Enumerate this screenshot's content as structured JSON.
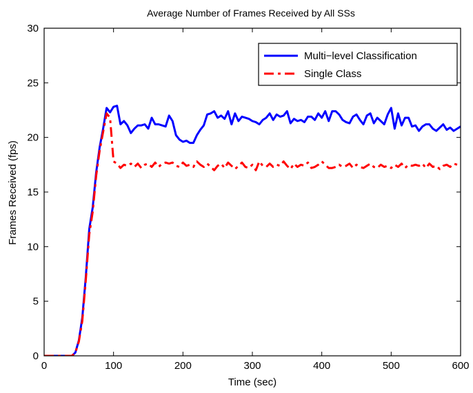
{
  "chart_data": {
    "type": "line",
    "title": "Average Number of Frames Received by All SSs",
    "xlabel": "Time (sec)",
    "ylabel": "Frames Received (fps)",
    "xlim": [
      0,
      600
    ],
    "ylim": [
      0,
      30
    ],
    "xticks": [
      "0",
      "100",
      "200",
      "300",
      "400",
      "500",
      "600"
    ],
    "yticks": [
      "0",
      "5",
      "10",
      "15",
      "20",
      "25",
      "30"
    ],
    "grid": false,
    "legend_position": "top-right",
    "series": [
      {
        "name": "Multi−level Classification",
        "color": "#0000ff",
        "style": "solid",
        "x": [
          0,
          5,
          10,
          15,
          20,
          25,
          30,
          35,
          40,
          45,
          50,
          55,
          60,
          65,
          70,
          75,
          80,
          85,
          90,
          95,
          100,
          105,
          110,
          115,
          120,
          125,
          130,
          135,
          140,
          145,
          150,
          155,
          160,
          165,
          170,
          175,
          180,
          185,
          190,
          195,
          200,
          205,
          210,
          215,
          220,
          225,
          230,
          235,
          240,
          245,
          250,
          255,
          260,
          265,
          270,
          275,
          280,
          285,
          290,
          295,
          300,
          305,
          310,
          315,
          320,
          325,
          330,
          335,
          340,
          345,
          350,
          355,
          360,
          365,
          370,
          375,
          380,
          385,
          390,
          395,
          400,
          405,
          410,
          415,
          420,
          425,
          430,
          435,
          440,
          445,
          450,
          455,
          460,
          465,
          470,
          475,
          480,
          485,
          490,
          495,
          500,
          505,
          510,
          515,
          520,
          525,
          530,
          535,
          540,
          545,
          550,
          555,
          560,
          565,
          570,
          575,
          580,
          585,
          590,
          595,
          600
        ],
        "y": [
          0,
          0,
          0,
          0,
          0,
          0,
          0,
          0,
          0,
          0.3,
          1.4,
          3.5,
          7.2,
          11.6,
          13.6,
          16.8,
          19.1,
          20.8,
          22.7,
          22.3,
          22.8,
          22.9,
          21.2,
          21.5,
          21.1,
          20.4,
          20.8,
          21.1,
          21.1,
          21.2,
          20.8,
          21.8,
          21.2,
          21.2,
          21.1,
          21.0,
          22.0,
          21.5,
          20.2,
          19.8,
          19.6,
          19.7,
          19.5,
          19.5,
          20.2,
          20.7,
          21.1,
          22.1,
          22.2,
          22.4,
          21.8,
          22.0,
          21.7,
          22.4,
          21.2,
          22.2,
          21.5,
          21.9,
          21.8,
          21.7,
          21.5,
          21.4,
          21.2,
          21.6,
          21.8,
          22.2,
          21.6,
          22.1,
          21.9,
          22.0,
          22.4,
          21.3,
          21.7,
          21.5,
          21.6,
          21.4,
          21.9,
          21.9,
          21.6,
          22.2,
          21.8,
          22.4,
          21.5,
          22.4,
          22.4,
          22.1,
          21.6,
          21.4,
          21.3,
          21.9,
          22.1,
          21.6,
          21.2,
          22.0,
          22.2,
          21.3,
          21.8,
          21.5,
          21.2,
          22.1,
          22.7,
          20.8,
          22.2,
          21.1,
          21.8,
          21.8,
          21.0,
          21.1,
          20.6,
          21.0,
          21.2,
          21.2,
          20.8,
          20.6,
          20.9,
          21.2,
          20.7,
          20.9,
          20.6,
          20.8,
          21.0
        ]
      },
      {
        "name": "Single Class",
        "color": "#ff0000",
        "style": "dashdot",
        "x": [
          0,
          5,
          10,
          15,
          20,
          25,
          30,
          35,
          40,
          45,
          50,
          55,
          60,
          65,
          70,
          75,
          80,
          85,
          90,
          95,
          100,
          105,
          110,
          115,
          120,
          125,
          130,
          135,
          140,
          145,
          150,
          155,
          160,
          165,
          170,
          175,
          180,
          185,
          190,
          195,
          200,
          205,
          210,
          215,
          220,
          225,
          230,
          235,
          240,
          245,
          250,
          255,
          260,
          265,
          270,
          275,
          280,
          285,
          290,
          295,
          300,
          305,
          310,
          315,
          320,
          325,
          330,
          335,
          340,
          345,
          350,
          355,
          360,
          365,
          370,
          375,
          380,
          385,
          390,
          395,
          400,
          405,
          410,
          415,
          420,
          425,
          430,
          435,
          440,
          445,
          450,
          455,
          460,
          465,
          470,
          475,
          480,
          485,
          490,
          495,
          500,
          505,
          510,
          515,
          520,
          525,
          530,
          535,
          540,
          545,
          550,
          555,
          560,
          565,
          570,
          575,
          580,
          585,
          590,
          595,
          600
        ],
        "y": [
          0,
          0,
          0,
          0,
          0,
          0,
          0,
          0,
          0,
          0.3,
          1.3,
          3.2,
          6.9,
          11.1,
          13.2,
          16.5,
          18.8,
          20.5,
          22.2,
          21.8,
          17.8,
          17.6,
          17.2,
          17.5,
          17.4,
          17.6,
          17.3,
          17.6,
          17.2,
          17.5,
          17.6,
          17.3,
          17.7,
          17.3,
          17.6,
          17.7,
          17.6,
          17.7,
          17.4,
          17.3,
          17.7,
          17.4,
          17.5,
          17.3,
          17.8,
          17.5,
          17.3,
          17.6,
          17.3,
          17.0,
          17.4,
          17.6,
          17.2,
          17.7,
          17.4,
          17.1,
          17.4,
          17.7,
          17.3,
          17.2,
          17.5,
          17.0,
          17.8,
          17.4,
          17.3,
          17.6,
          17.3,
          17.5,
          17.4,
          17.8,
          17.4,
          17.1,
          17.6,
          17.3,
          17.5,
          17.4,
          17.7,
          17.2,
          17.3,
          17.5,
          17.8,
          17.5,
          17.2,
          17.2,
          17.3,
          17.5,
          17.3,
          17.4,
          17.6,
          17.2,
          17.5,
          17.3,
          17.2,
          17.4,
          17.6,
          17.3,
          17.2,
          17.5,
          17.3,
          17.4,
          17.2,
          17.5,
          17.3,
          17.6,
          17.2,
          17.5,
          17.4,
          17.5,
          17.4,
          17.6,
          17.2,
          17.6,
          17.3,
          17.4,
          17.1,
          17.4,
          17.5,
          17.3,
          17.6,
          17.5,
          17.5
        ]
      }
    ]
  }
}
